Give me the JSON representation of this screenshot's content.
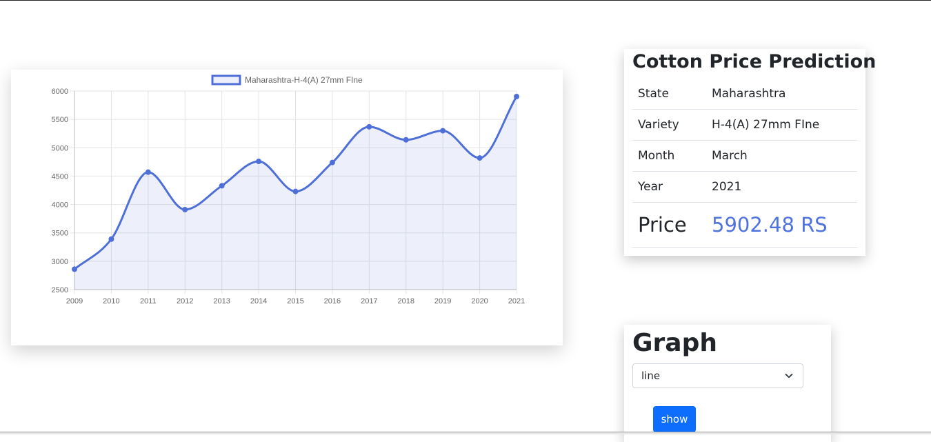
{
  "chart_data": {
    "type": "line",
    "x": [
      "2009",
      "2010",
      "2011",
      "2012",
      "2013",
      "2014",
      "2015",
      "2016",
      "2017",
      "2018",
      "2019",
      "2020",
      "2021"
    ],
    "series": [
      {
        "name": "Maharashtra-H-4(A) 27mm FIne",
        "values": [
          2860,
          3390,
          4570,
          3910,
          4330,
          4760,
          4230,
          4740,
          5370,
          5140,
          5300,
          4820,
          5902.48
        ],
        "color": "#4e6fd8",
        "fill": true
      }
    ],
    "ylim": [
      2500,
      6000
    ],
    "yticks": [
      2500,
      3000,
      3500,
      4000,
      4500,
      5000,
      5500,
      6000
    ],
    "grid": true,
    "legend": "top",
    "title": "",
    "xlabel": "",
    "ylabel": ""
  },
  "prediction": {
    "title": "Cotton Price Prediction",
    "rows": [
      {
        "label": "State",
        "value": "Maharashtra"
      },
      {
        "label": "Variety",
        "value": "H-4(A) 27mm FIne"
      },
      {
        "label": "Month",
        "value": "March"
      },
      {
        "label": "Year",
        "value": "2021"
      }
    ],
    "price_label": "Price",
    "price_value": "5902.48 RS",
    "accent_color": "#4e73df"
  },
  "graph": {
    "title": "Graph",
    "select_value": "line",
    "select_icon": "chevron-down-icon",
    "button_label": "show",
    "button_color": "#0d6efd"
  }
}
